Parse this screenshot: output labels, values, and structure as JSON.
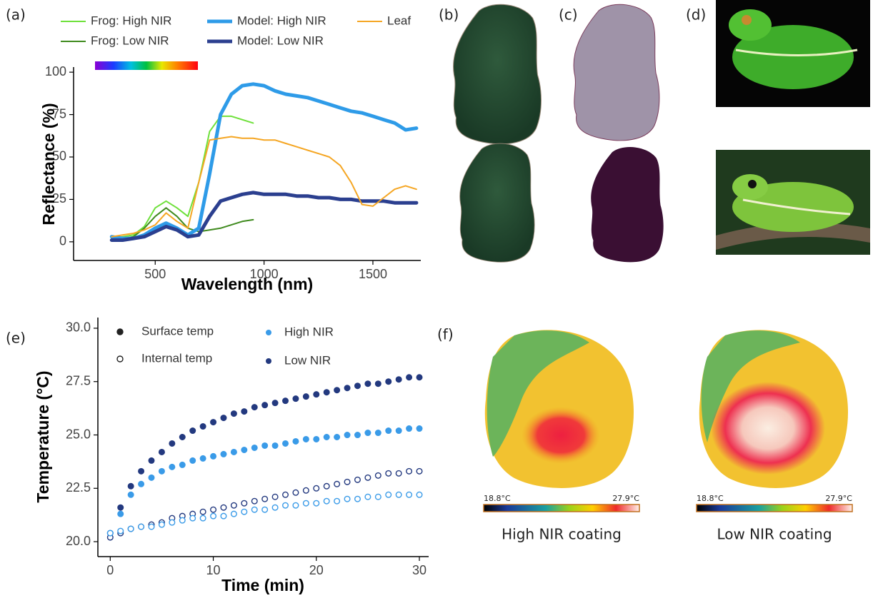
{
  "chart_data": [
    {
      "type": "line",
      "y_label": "Reflectance (%)",
      "x_label": "Wavelength (nm)",
      "x": [
        300,
        350,
        400,
        450,
        500,
        550,
        600,
        650,
        700,
        750,
        800,
        850,
        900,
        950,
        1000,
        1050,
        1100,
        1150,
        1200,
        1250,
        1300,
        1350,
        1400,
        1450,
        1500,
        1550,
        1600,
        1650,
        1700
      ],
      "series": [
        {
          "name": "Frog: High NIR",
          "color": "#6ee03a",
          "values": [
            2,
            3,
            4,
            9,
            20,
            24,
            20,
            15,
            35,
            65,
            74,
            74,
            72,
            70,
            null,
            null,
            null,
            null,
            null,
            null,
            null,
            null,
            null,
            null,
            null,
            null,
            null,
            null,
            null
          ]
        },
        {
          "name": "Frog: Low NIR",
          "color": "#3f8a1e",
          "values": [
            1,
            2,
            3,
            8,
            15,
            20,
            15,
            8,
            6,
            7,
            8,
            10,
            12,
            13,
            null,
            null,
            null,
            null,
            null,
            null,
            null,
            null,
            null,
            null,
            null,
            null,
            null,
            null,
            null
          ]
        },
        {
          "name": "Model: High NIR",
          "color": "#2e9be8",
          "values": [
            3,
            2,
            2,
            4,
            8,
            11,
            8,
            4,
            8,
            40,
            75,
            87,
            92,
            93,
            92,
            89,
            87,
            86,
            85,
            83,
            81,
            79,
            77,
            76,
            74,
            72,
            70,
            66,
            67
          ]
        },
        {
          "name": "Model: Low NIR",
          "color": "#2b3f8f",
          "values": [
            1,
            1,
            2,
            3,
            6,
            9,
            7,
            3,
            4,
            15,
            24,
            26,
            28,
            29,
            28,
            28,
            28,
            27,
            27,
            26,
            26,
            25,
            25,
            24,
            24,
            24,
            23,
            23,
            23
          ]
        },
        {
          "name": "Leaf",
          "color": "#f5a623",
          "values": [
            3,
            4,
            5,
            7,
            10,
            17,
            12,
            8,
            35,
            60,
            61,
            62,
            61,
            61,
            60,
            60,
            58,
            56,
            54,
            52,
            50,
            45,
            35,
            22,
            21,
            26,
            31,
            33,
            31
          ]
        }
      ],
      "xlim": [
        125,
        1720
      ],
      "xticks": [
        500,
        1000,
        1500
      ],
      "ylim": [
        -11,
        103
      ],
      "yticks": [
        0,
        25,
        50,
        75,
        100
      ]
    },
    {
      "type": "scatter",
      "y_label": "Temperature (°C)",
      "x_label": "Time (min)",
      "legend_shapes": [
        {
          "label": "Surface temp",
          "filled": true
        },
        {
          "label": "Internal temp",
          "filled": false
        }
      ],
      "legend_colors": [
        {
          "label": "High NIR",
          "color": "#3a9be8"
        },
        {
          "label": "Low NIR",
          "color": "#23397f"
        }
      ],
      "x": [
        0,
        1,
        2,
        3,
        4,
        5,
        6,
        7,
        8,
        9,
        10,
        11,
        12,
        13,
        14,
        15,
        16,
        17,
        18,
        19,
        20,
        21,
        22,
        23,
        24,
        25,
        26,
        27,
        28,
        29,
        30
      ],
      "series": [
        {
          "color": "#23397f",
          "filled": true,
          "values": [
            20.4,
            21.6,
            22.6,
            23.3,
            23.8,
            24.2,
            24.6,
            24.9,
            25.2,
            25.4,
            25.6,
            25.8,
            26.0,
            26.1,
            26.3,
            26.4,
            26.5,
            26.6,
            26.7,
            26.8,
            26.9,
            27.0,
            27.1,
            27.2,
            27.3,
            27.4,
            27.4,
            27.5,
            27.6,
            27.7,
            27.7
          ]
        },
        {
          "color": "#3a9be8",
          "filled": true,
          "values": [
            20.4,
            21.3,
            22.2,
            22.7,
            23.0,
            23.3,
            23.5,
            23.6,
            23.8,
            23.9,
            24.0,
            24.1,
            24.2,
            24.3,
            24.4,
            24.5,
            24.5,
            24.6,
            24.7,
            24.8,
            24.8,
            24.9,
            24.9,
            25.0,
            25.0,
            25.1,
            25.1,
            25.2,
            25.2,
            25.3,
            25.3
          ]
        },
        {
          "color": "#23397f",
          "filled": false,
          "values": [
            20.2,
            20.4,
            20.6,
            20.7,
            20.8,
            20.9,
            21.1,
            21.2,
            21.3,
            21.4,
            21.5,
            21.6,
            21.7,
            21.8,
            21.9,
            22.0,
            22.1,
            22.2,
            22.3,
            22.4,
            22.5,
            22.6,
            22.7,
            22.8,
            22.9,
            23.0,
            23.1,
            23.2,
            23.2,
            23.3,
            23.3
          ]
        },
        {
          "color": "#3a9be8",
          "filled": false,
          "values": [
            20.4,
            20.5,
            20.6,
            20.7,
            20.7,
            20.8,
            20.9,
            21.0,
            21.1,
            21.1,
            21.2,
            21.2,
            21.3,
            21.4,
            21.5,
            21.5,
            21.6,
            21.7,
            21.7,
            21.8,
            21.8,
            21.9,
            21.9,
            22.0,
            22.0,
            22.1,
            22.1,
            22.2,
            22.2,
            22.2,
            22.2
          ]
        }
      ],
      "xlim": [
        -1.2,
        30.9
      ],
      "xticks": [
        0,
        10,
        20,
        30
      ],
      "ylim": [
        19.3,
        30.5
      ],
      "yticks": [
        {
          "value": 20,
          "label": "20.0"
        },
        {
          "value": 22.5,
          "label": "22.5"
        },
        {
          "value": 25,
          "label": "25.0"
        },
        {
          "value": 27.5,
          "label": "27.5"
        },
        {
          "value": 30,
          "label": "30.0"
        }
      ]
    }
  ],
  "panel_labels": [
    "(a)",
    "(b)",
    "(c)",
    "(d)",
    "(e)",
    "(f)"
  ],
  "thermal_images": [
    {
      "caption": "High NIR coating",
      "scale_min": "18.8°C",
      "scale_max": "27.9°C"
    },
    {
      "caption": "Low NIR coating",
      "scale_min": "18.8°C",
      "scale_max": "27.9°C"
    }
  ]
}
